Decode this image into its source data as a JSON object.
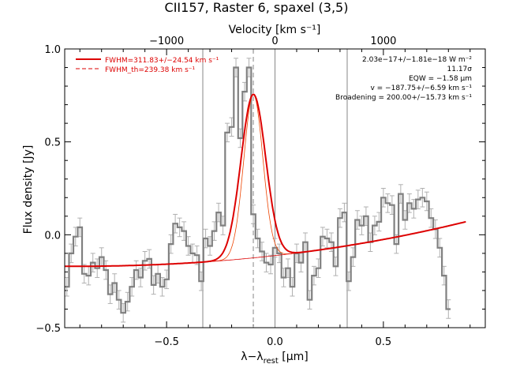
{
  "chart_data": {
    "type": "line",
    "title": "CII157, Raster 6, spaxel (3,5)",
    "xlabel_prefix": "λ−λ",
    "xlabel_sub": "rest",
    "xlabel_unit": " [μm]",
    "ylabel": "Flux density [Jy]",
    "top_axis_label": "Velocity [km s⁻¹]",
    "xlim": [
      -0.97,
      0.97
    ],
    "ylim": [
      -0.5,
      1.0
    ],
    "x_ticks": [
      {
        "value": -0.5,
        "label": "−0.5"
      },
      {
        "value": 0.0,
        "label": "0.0"
      },
      {
        "value": 0.5,
        "label": "0.5"
      }
    ],
    "y_ticks": [
      {
        "value": -0.5,
        "label": "−0.5"
      },
      {
        "value": 0.0,
        "label": "0.0"
      },
      {
        "value": 0.5,
        "label": "0.5"
      },
      {
        "value": 1.0,
        "label": "1.0"
      }
    ],
    "top_ticks": [
      {
        "x": -0.5,
        "label": "−1000"
      },
      {
        "x": 0.0,
        "label": "0"
      },
      {
        "x": 0.5,
        "label": "1000"
      }
    ],
    "vertical_lines": [
      -0.333,
      0.0,
      0.333
    ],
    "dashed_line_x": -0.1,
    "annotations": [
      "2.03e−17+/−1.81e−18 W m⁻²",
      "11.17σ",
      "EQW = −1.58 μm",
      "v = −187.75+/−6.59 km s⁻¹",
      "Broadening = 200.00+/−15.73 km s⁻¹"
    ],
    "legend_position": "top-left",
    "legend": [
      {
        "label": "FWHM=311.83+/−24.54 km s⁻¹",
        "style": "solid",
        "color": "#dd0000"
      },
      {
        "label": "FWHM_th=239.38 km s⁻¹",
        "style": "dashed",
        "color": "#dd0000"
      }
    ],
    "colors": {
      "data": "#808080",
      "fit": "#dd0000",
      "thin_fit": "#ee4400",
      "reference": "#888888"
    },
    "data_step": {
      "x_start": -0.97,
      "x_step": 0.02,
      "values": [
        -0.28,
        -0.1,
        -0.01,
        0.04,
        -0.21,
        -0.22,
        -0.15,
        -0.18,
        -0.12,
        -0.19,
        -0.32,
        -0.26,
        -0.35,
        -0.42,
        -0.36,
        -0.28,
        -0.19,
        -0.23,
        -0.14,
        -0.13,
        -0.27,
        -0.21,
        -0.28,
        -0.24,
        -0.05,
        0.06,
        0.04,
        0.02,
        -0.06,
        -0.1,
        -0.11,
        -0.25,
        -0.02,
        -0.06,
        0.02,
        0.12,
        0.05,
        0.55,
        0.58,
        0.9,
        0.52,
        0.77,
        0.9,
        0.11,
        -0.02,
        -0.09,
        -0.15,
        -0.16,
        -0.07,
        -0.1,
        -0.23,
        -0.18,
        -0.28,
        -0.1,
        -0.15,
        -0.04,
        -0.35,
        -0.22,
        -0.18,
        -0.01,
        -0.02,
        -0.04,
        -0.17,
        0.09,
        0.12,
        -0.25,
        -0.12,
        0.08,
        0.05,
        0.1,
        -0.04,
        0.05,
        0.07,
        0.2,
        0.17,
        0.16,
        -0.05,
        0.22,
        0.08,
        0.17,
        0.14,
        0.19,
        0.2,
        0.18,
        0.09,
        0.03,
        -0.07,
        -0.22,
        -0.4
      ],
      "error": 0.05
    },
    "fit": {
      "x_start": -0.97,
      "x_end": 0.88,
      "continuum_left": -0.17,
      "continuum_right": 0.07,
      "center": -0.1,
      "amplitude": 0.88,
      "sigma": 0.057,
      "sigma_thin": 0.044
    }
  }
}
